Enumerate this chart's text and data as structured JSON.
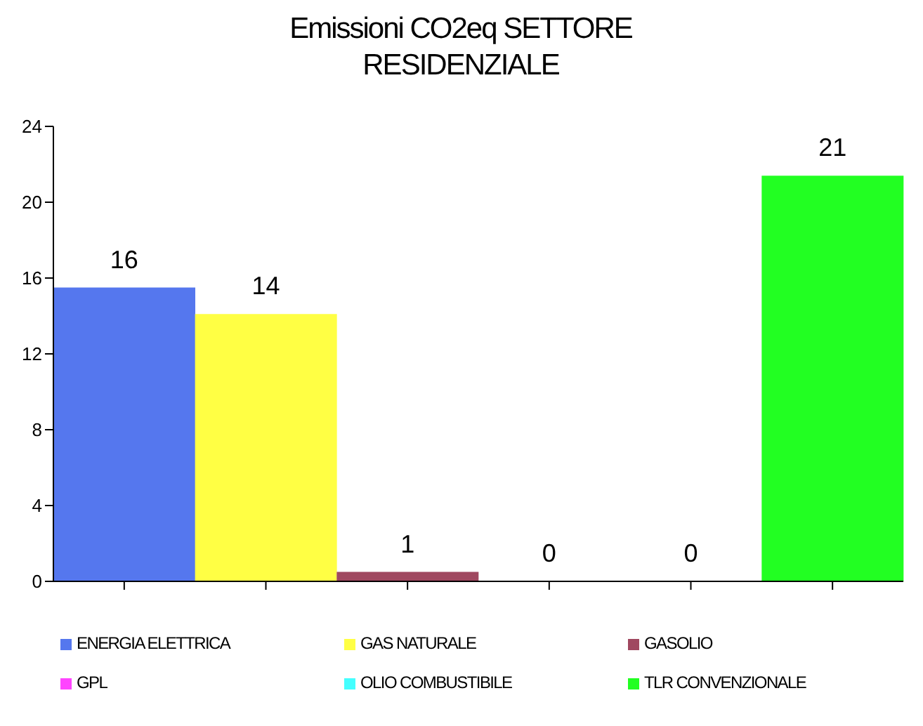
{
  "chart_data": {
    "type": "bar",
    "title": "Emissioni CO2eq SETTORE RESIDENZIALE",
    "categories": [
      null,
      null,
      null,
      null,
      null,
      null
    ],
    "stacked": true,
    "ylim": [
      0,
      24
    ],
    "yticks": [
      0,
      4,
      8,
      12,
      16,
      20,
      24
    ],
    "grid": false,
    "legend": "bottom",
    "series": [
      {
        "name": "ENERGIA ELETTRICA",
        "color": "#5577ee",
        "values": [
          15.5,
          null,
          null,
          null,
          null,
          null
        ],
        "value_labels": [
          "16",
          null,
          null,
          null,
          null,
          null
        ]
      },
      {
        "name": "GAS NATURALE",
        "color": "#ffff44",
        "values": [
          null,
          14.1,
          null,
          null,
          null,
          null
        ],
        "value_labels": [
          null,
          "14",
          null,
          null,
          null,
          null
        ]
      },
      {
        "name": "GASOLIO",
        "color": "#a04860",
        "values": [
          null,
          null,
          0.5,
          null,
          null,
          null
        ],
        "value_labels": [
          null,
          null,
          "1",
          null,
          null,
          null
        ]
      },
      {
        "name": "GPL",
        "color": "#ff44ff",
        "values": [
          null,
          null,
          null,
          0,
          null,
          null
        ],
        "value_labels": [
          null,
          null,
          null,
          "0",
          null,
          null
        ]
      },
      {
        "name": "OLIO COMBUSTIBILE",
        "color": "#44ffff",
        "values": [
          null,
          null,
          null,
          null,
          0,
          null
        ],
        "value_labels": [
          null,
          null,
          null,
          null,
          "0",
          null
        ]
      },
      {
        "name": "TLR CONVENZIONALE",
        "color": "#22ff22",
        "values": [
          null,
          null,
          null,
          null,
          null,
          21.4
        ],
        "value_labels": [
          null,
          null,
          null,
          null,
          null,
          "21"
        ]
      }
    ]
  }
}
